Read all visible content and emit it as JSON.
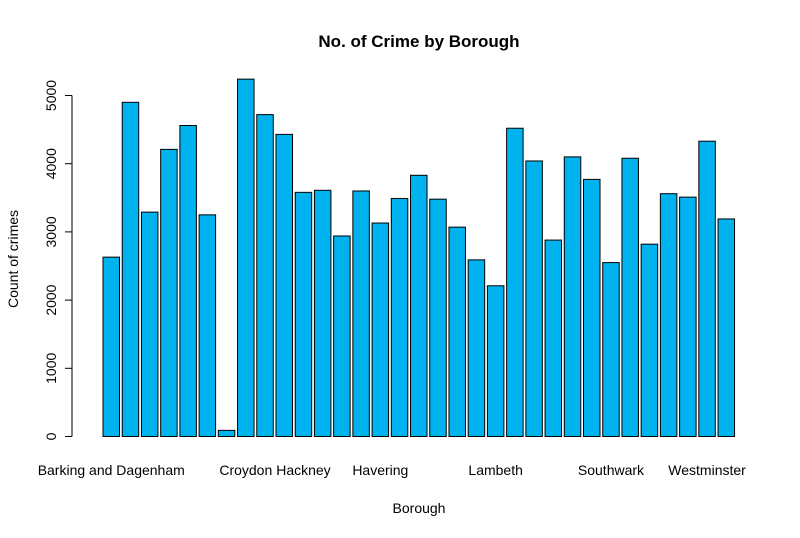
{
  "chart_data": {
    "type": "bar",
    "title": "No. of Crime by Borough",
    "xlabel": "Borough",
    "ylabel": "Count of crimes",
    "ylim": [
      0,
      5300
    ],
    "yticks": [
      0,
      1000,
      2000,
      3000,
      4000,
      5000
    ],
    "grid": false,
    "bar_color": "#00b2ee",
    "categories": [
      "Barking and Dagenham",
      "",
      "",
      "",
      "",
      "",
      "",
      "Croydon",
      "",
      "",
      "Hackney",
      "",
      "",
      "",
      "Havering",
      "",
      "",
      "",
      "",
      "",
      "Lambeth",
      "",
      "",
      "",
      "",
      "",
      "Southwark",
      "",
      "",
      "",
      "",
      "Westminster",
      ""
    ],
    "values": [
      2630,
      4900,
      3290,
      4210,
      4560,
      3250,
      90,
      5240,
      4720,
      4430,
      3580,
      3610,
      2940,
      3600,
      3130,
      3490,
      3830,
      3480,
      3070,
      2590,
      2210,
      4520,
      4040,
      2880,
      4100,
      3770,
      2550,
      4080,
      2820,
      3560,
      3510,
      4330,
      3190
    ],
    "visible_category_labels": [
      {
        "index": 0,
        "label": "Barking and Dagenham"
      },
      {
        "index": 7,
        "label": "Croydon"
      },
      {
        "index": 10,
        "label": "Hackney"
      },
      {
        "index": 14,
        "label": "Havering"
      },
      {
        "index": 20,
        "label": "Lambeth"
      },
      {
        "index": 26,
        "label": "Southwark"
      },
      {
        "index": 31,
        "label": "Westminster"
      }
    ]
  }
}
